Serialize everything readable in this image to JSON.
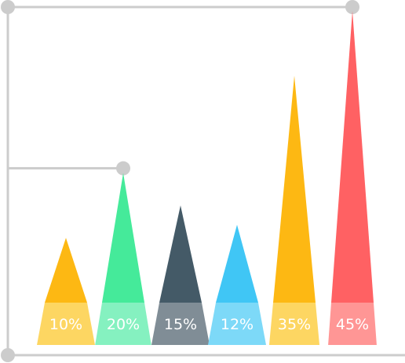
{
  "chart_data": {
    "type": "bar",
    "categories": [
      "",
      "",
      "",
      "",
      "",
      ""
    ],
    "values": [
      10,
      20,
      15,
      12,
      35,
      45
    ],
    "labels": [
      "10%",
      "20%",
      "15%",
      "12%",
      "35%",
      "45%"
    ],
    "colors": [
      "#FDB813",
      "#45EA9A",
      "#445A67",
      "#40C6F5",
      "#FDB813",
      "#FF6163"
    ],
    "base_colors": [
      "#FDD662",
      "#85F1C0",
      "#808D96",
      "#7DD9F8",
      "#FDD662",
      "#FF9695"
    ],
    "axis_color": "#CCCCCC",
    "grid": false,
    "title": "",
    "xlabel": "",
    "ylabel": ""
  }
}
